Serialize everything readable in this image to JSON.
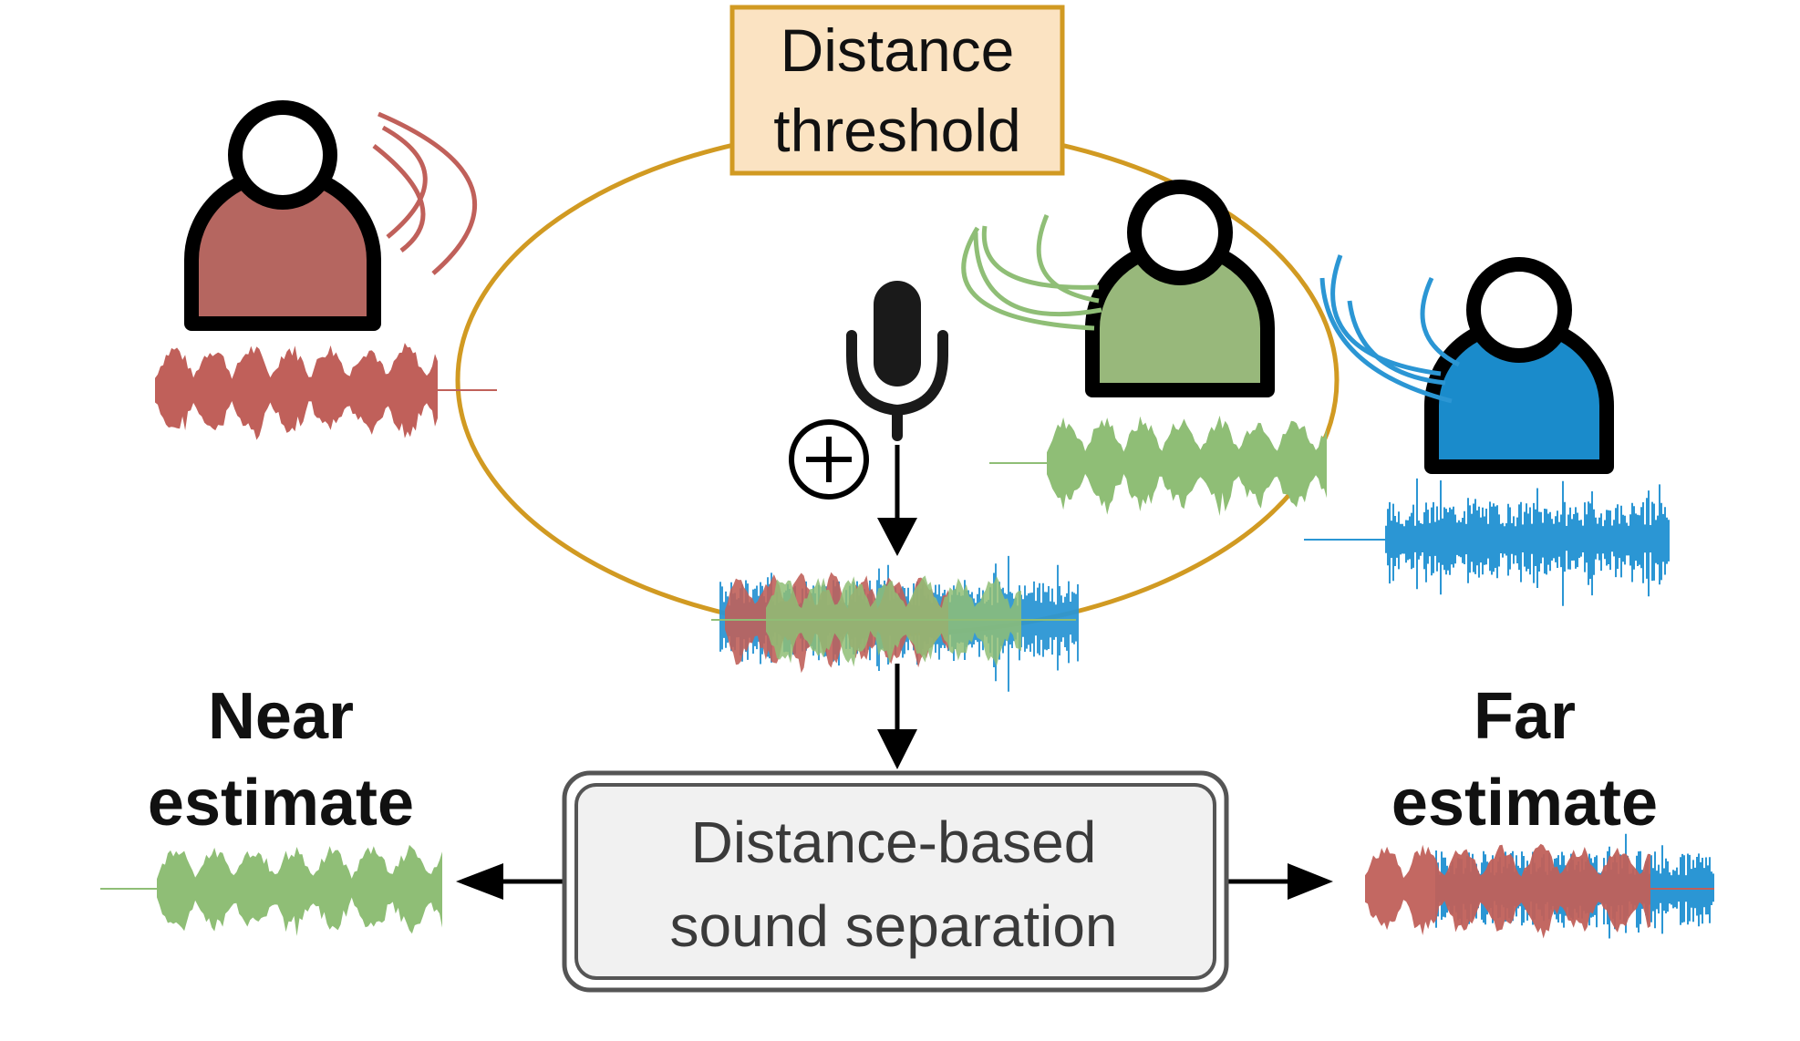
{
  "threshold_box": {
    "line1": "Distance",
    "line2": "threshold"
  },
  "process_box": {
    "line1": "Distance-based",
    "line2": "sound separation"
  },
  "near_label": {
    "line1": "Near",
    "line2": "estimate"
  },
  "far_label": {
    "line1": "Far",
    "line2": "estimate"
  },
  "speakers": [
    {
      "id": "near-red",
      "color": "#b56660"
    },
    {
      "id": "inside-green",
      "color": "#98b87b"
    },
    {
      "id": "far-blue",
      "color": "#1a8bcb"
    }
  ],
  "colors": {
    "threshold_ellipse": "#d19a22",
    "threshold_box_fill": "#fbe3c2",
    "wave_red": "#c0605a",
    "wave_green": "#8fbe76",
    "wave_blue": "#2b96d4",
    "process_box_fill": "#f1f1f1",
    "arrow": "#111111"
  },
  "icons": [
    "microphone-icon",
    "plus-circle-icon",
    "person-icon"
  ]
}
